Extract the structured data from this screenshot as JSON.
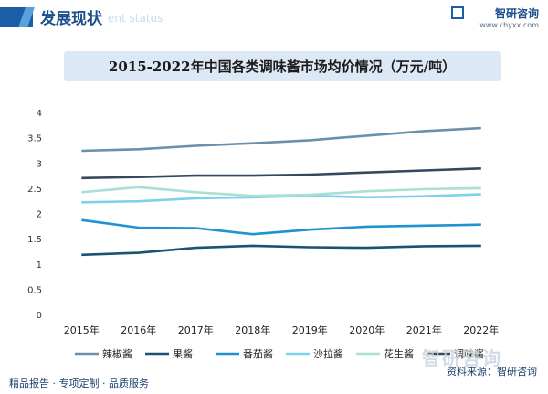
{
  "header": {
    "section_title": "发展现状",
    "section_subtitle": "ent status",
    "brand_name": "智研咨询",
    "brand_url": "www.chyxx.com"
  },
  "footer": {
    "left_text": "精品报告 · 专项定制 · 品质服务",
    "source_text": "资料来源：智研咨询"
  },
  "watermark_text": "智研咨询",
  "chart_data": {
    "type": "line",
    "title": "2015-2022年中国各类调味酱市场均价情况（万元/吨）",
    "categories": [
      "2015年",
      "2016年",
      "2017年",
      "2018年",
      "2019年",
      "2020年",
      "2021年",
      "2022年"
    ],
    "ylim": [
      0,
      4
    ],
    "yticks": [
      "0",
      "0.5",
      "1",
      "1.5",
      "2",
      "2.5",
      "3",
      "3.5",
      "4"
    ],
    "grid": false,
    "legend_position": "bottom",
    "series": [
      {
        "name": "辣椒酱",
        "color": "#6a91ab",
        "values": [
          3.24,
          3.27,
          3.34,
          3.39,
          3.45,
          3.54,
          3.63,
          3.69
        ]
      },
      {
        "name": "果酱",
        "color": "#195272",
        "values": [
          1.18,
          1.22,
          1.32,
          1.36,
          1.33,
          1.32,
          1.35,
          1.36
        ]
      },
      {
        "name": "番茄酱",
        "color": "#1f93d2",
        "values": [
          1.87,
          1.72,
          1.71,
          1.59,
          1.68,
          1.74,
          1.76,
          1.78
        ]
      },
      {
        "name": "沙拉酱",
        "color": "#7fd0ec",
        "values": [
          2.22,
          2.24,
          2.3,
          2.32,
          2.35,
          2.32,
          2.34,
          2.38
        ]
      },
      {
        "name": "花生酱",
        "color": "#a9dfd4",
        "values": [
          2.42,
          2.52,
          2.42,
          2.35,
          2.37,
          2.44,
          2.48,
          2.5
        ]
      },
      {
        "name": "调味酱",
        "color": "#34495e",
        "values": [
          2.7,
          2.72,
          2.75,
          2.75,
          2.77,
          2.81,
          2.85,
          2.89
        ]
      }
    ]
  }
}
